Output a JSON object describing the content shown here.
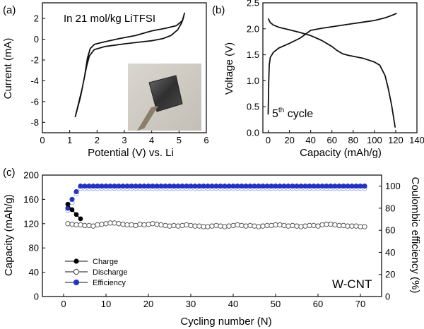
{
  "chart_data": [
    {
      "panel": "(a)",
      "type": "line",
      "annotation": "In 21 mol/kg LiTFSI",
      "inset": "photo",
      "xlabel": "Potential (V) vs. Li",
      "ylabel": "Current (mA)",
      "xlim": [
        0,
        6
      ],
      "ylim": [
        -9,
        3.5
      ],
      "xticks": [
        0,
        1,
        2,
        3,
        4,
        5,
        6
      ],
      "yticks": [
        -8,
        -6,
        -4,
        -2,
        0,
        2
      ],
      "series": [
        {
          "x": [
            1.2,
            1.45,
            1.62,
            1.72,
            1.9,
            2.3,
            3.0,
            3.5,
            4.0,
            4.4,
            4.7,
            4.95,
            5.1,
            5.2,
            5.13,
            4.9,
            4.5,
            4.0,
            3.4,
            2.8,
            2.2,
            1.9,
            1.75,
            1.65,
            1.55,
            1.4,
            1.2
          ],
          "y": [
            -7.5,
            -4.8,
            -2.6,
            -1.6,
            -1.0,
            -0.7,
            -0.45,
            -0.3,
            -0.15,
            0.05,
            0.35,
            0.9,
            1.6,
            2.5,
            1.8,
            1.3,
            1.05,
            0.8,
            0.35,
            0.05,
            -0.3,
            -0.5,
            -0.9,
            -1.8,
            -3.5,
            -5.5,
            -7.5
          ]
        }
      ]
    },
    {
      "panel": "(b)",
      "type": "line",
      "annotation": "5th cycle",
      "xlabel": "Capacity (mAh/g)",
      "ylabel": "Voltage (V)",
      "xlim": [
        -5,
        140
      ],
      "ylim": [
        0,
        2.5
      ],
      "xticks": [
        0,
        20,
        40,
        60,
        80,
        100,
        120,
        140
      ],
      "yticks": [
        0.0,
        0.5,
        1.0,
        1.5,
        2.0,
        2.5
      ],
      "series": [
        {
          "x": [
            0,
            0.5,
            1,
            2,
            5,
            10,
            20,
            30,
            40,
            50,
            60,
            70,
            80,
            90,
            100,
            110,
            118,
            121
          ],
          "y": [
            0.35,
            1.0,
            1.3,
            1.45,
            1.55,
            1.63,
            1.72,
            1.82,
            1.97,
            2.01,
            2.04,
            2.07,
            2.1,
            2.13,
            2.16,
            2.21,
            2.27,
            2.3
          ]
        },
        {
          "x": [
            0,
            2,
            5,
            10,
            20,
            30,
            40,
            50,
            60,
            65,
            70,
            75,
            80,
            90,
            100,
            105,
            110,
            113,
            116,
            118,
            119.5
          ],
          "y": [
            2.2,
            2.12,
            2.07,
            2.03,
            1.98,
            1.93,
            1.87,
            1.78,
            1.66,
            1.58,
            1.52,
            1.49,
            1.47,
            1.43,
            1.36,
            1.3,
            1.1,
            0.85,
            0.55,
            0.3,
            0.1
          ]
        }
      ]
    },
    {
      "panel": "(c)",
      "type": "scatter",
      "annotation": "W-CNT",
      "xlabel": "Cycling number (N)",
      "ylabel": "Capacity (mAh/g)",
      "y2label": "Coulombic efficiency (%)",
      "xlim": [
        -5,
        75
      ],
      "ylim": [
        0,
        200
      ],
      "y2lim": [
        0,
        110
      ],
      "xticks": [
        0,
        10,
        20,
        30,
        40,
        50,
        60,
        70
      ],
      "yticks": [
        0,
        40,
        80,
        120,
        160,
        200
      ],
      "y2ticks": [
        0,
        20,
        40,
        60,
        80,
        100
      ],
      "legend_position": "bottom-left",
      "series": [
        {
          "name": "Charge",
          "axis": "left",
          "marker": "filled-black",
          "x": [
            1,
            2,
            3,
            4
          ],
          "y": [
            152,
            143,
            135,
            128
          ]
        },
        {
          "name": "Discharge",
          "axis": "left",
          "marker": "open",
          "x": [
            1,
            2,
            3,
            4,
            5,
            6,
            7,
            8,
            9,
            10,
            11,
            12,
            13,
            14,
            15,
            16,
            17,
            18,
            19,
            20,
            21,
            22,
            23,
            24,
            25,
            26,
            27,
            28,
            29,
            30,
            31,
            32,
            33,
            34,
            35,
            36,
            37,
            38,
            39,
            40,
            41,
            42,
            43,
            44,
            45,
            46,
            47,
            48,
            49,
            50,
            51,
            52,
            53,
            54,
            55,
            56,
            57,
            58,
            59,
            60,
            61,
            62,
            63,
            64,
            65,
            66,
            67,
            68,
            69,
            70,
            71
          ],
          "y": [
            120,
            119,
            118,
            118,
            117,
            117,
            116,
            118,
            119,
            120,
            121,
            121,
            120,
            119,
            118,
            118,
            117,
            119,
            118,
            119,
            120,
            119,
            118,
            117,
            116,
            117,
            116,
            117,
            118,
            117,
            116,
            116,
            115,
            115,
            116,
            117,
            116,
            115,
            116,
            117,
            118,
            117,
            116,
            117,
            116,
            115,
            116,
            117,
            117,
            118,
            118,
            117,
            116,
            117,
            116,
            115,
            116,
            117,
            117,
            116,
            118,
            119,
            119,
            118,
            117,
            117,
            116,
            116,
            116,
            115,
            115
          ]
        },
        {
          "name": "Efficiency",
          "axis": "right",
          "marker": "blue",
          "x": [
            1,
            2,
            3,
            4,
            5,
            6,
            7,
            8,
            9,
            10,
            11,
            12,
            13,
            14,
            15,
            16,
            17,
            18,
            19,
            20,
            21,
            22,
            23,
            24,
            25,
            26,
            27,
            28,
            29,
            30,
            31,
            32,
            33,
            34,
            35,
            36,
            37,
            38,
            39,
            40,
            41,
            42,
            43,
            44,
            45,
            46,
            47,
            48,
            49,
            50,
            51,
            52,
            53,
            54,
            55,
            56,
            57,
            58,
            59,
            60,
            61,
            62,
            63,
            64,
            65,
            66,
            67,
            68,
            69,
            70,
            71
          ],
          "y": [
            80,
            88,
            95,
            100,
            100,
            100,
            100,
            100,
            100,
            100,
            100,
            100,
            100,
            100,
            100,
            100,
            100,
            100,
            100,
            100,
            100,
            100,
            100,
            100,
            100,
            100,
            100,
            100,
            100,
            100,
            100,
            100,
            100,
            100,
            100,
            100,
            100,
            100,
            100,
            100,
            100,
            100,
            100,
            100,
            100,
            100,
            100,
            100,
            100,
            100,
            100,
            100,
            100,
            100,
            100,
            100,
            100,
            100,
            100,
            100,
            100,
            100,
            100,
            100,
            100,
            100,
            100,
            100,
            100,
            100,
            100
          ]
        },
        {
          "name": "Efficiency-lower",
          "axis": "right",
          "marker": "open",
          "x": [
            1,
            2,
            3,
            4,
            5,
            6,
            7,
            8,
            9,
            10,
            11,
            12,
            13,
            14,
            15,
            16,
            17,
            18,
            19,
            20,
            21,
            22,
            23,
            24,
            25,
            26,
            27,
            28,
            29,
            30,
            31,
            32,
            33,
            34,
            35,
            36,
            37,
            38,
            39,
            40,
            41,
            42,
            43,
            44,
            45,
            46,
            47,
            48,
            49,
            50,
            51,
            52,
            53,
            54,
            55,
            56,
            57,
            58,
            59,
            60,
            61,
            62,
            63,
            64,
            65,
            66,
            67,
            68,
            69,
            70,
            71
          ],
          "y": [
            78,
            85,
            93,
            98,
            98,
            98,
            98,
            98,
            98,
            98,
            98,
            98,
            98,
            98,
            98,
            98,
            98,
            98,
            98,
            98,
            98,
            98,
            98,
            98,
            98,
            98,
            98,
            98,
            98,
            98,
            98,
            98,
            98,
            98,
            98,
            98,
            98,
            98,
            98,
            98,
            98,
            98,
            98,
            98,
            98,
            98,
            98,
            98,
            98,
            98,
            98,
            98,
            98,
            98,
            98,
            98,
            98,
            98,
            98,
            98,
            98,
            98,
            98,
            98,
            98,
            98,
            98,
            98,
            98,
            98,
            98
          ]
        }
      ]
    }
  ],
  "labels": {
    "a": {
      "panel": "(a)",
      "annotation": "In 21 mol/kg LiTFSI",
      "xlabel": "Potential (V) vs. Li",
      "ylabel": "Current (mA)"
    },
    "b": {
      "panel": "(b)",
      "annotation_main": "5",
      "annotation_sup": "th",
      "annotation_rest": " cycle",
      "xlabel": "Capacity (mAh/g)",
      "ylabel": "Voltage (V)"
    },
    "c": {
      "panel": "(c)",
      "annotation": "W-CNT",
      "xlabel": "Cycling number (N)",
      "ylabel": "Capacity (mAh/g)",
      "y2label": "Coulombic efficiency (%)",
      "legend": [
        "Charge",
        "Discharge",
        "Efficiency"
      ]
    }
  },
  "colors": {
    "axis": "#000000",
    "line": "#111111",
    "efficiency": "#2233cc",
    "efficiency_light": "#9aa4e8"
  }
}
